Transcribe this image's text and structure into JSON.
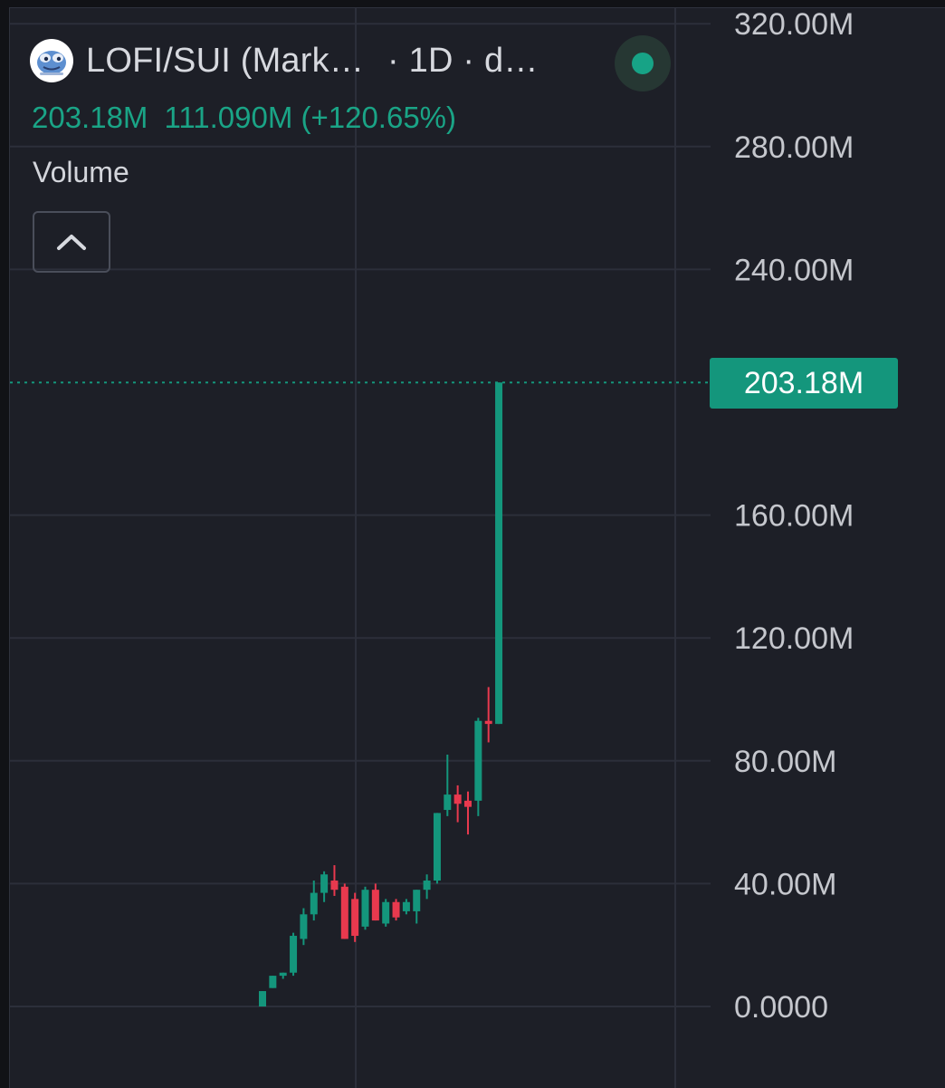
{
  "header": {
    "symbol": "LOFI/SUI (Mark…",
    "interval": "· 1D · d…",
    "logo_icon": "pepe-frog-logo",
    "status_icon": "market-open-dot",
    "status_color": "#17a386"
  },
  "values": {
    "last": "203.18M",
    "change": "111.090M (+120.65%)"
  },
  "indicator": {
    "name": "Volume",
    "collapse_icon": "chevron-up-icon"
  },
  "price_tag": "203.18M",
  "colors": {
    "background": "#1d1f27",
    "up": "#14967c",
    "down": "#e8394e",
    "grid": "#2c2f3a",
    "axis_text": "#c5c7cd"
  },
  "chart_data": {
    "type": "candlestick",
    "y_axis_ticks": [
      "0.0000",
      "40.00M",
      "80.00M",
      "120.00M",
      "160.00M",
      "203.18M",
      "240.00M",
      "280.00M",
      "320.00M"
    ],
    "y_axis_ticks_values": [
      0,
      40,
      80,
      120,
      160,
      240,
      280,
      320
    ],
    "ylim": [
      0,
      320
    ],
    "unit": "M",
    "last_value": 203.18,
    "grid": true,
    "candles": [
      {
        "o": 0,
        "h": 5,
        "l": 0,
        "c": 5
      },
      {
        "o": 6,
        "h": 10,
        "l": 6,
        "c": 10
      },
      {
        "o": 10,
        "h": 11,
        "l": 9,
        "c": 11
      },
      {
        "o": 11,
        "h": 24,
        "l": 10,
        "c": 23
      },
      {
        "o": 22,
        "h": 32,
        "l": 20,
        "c": 30
      },
      {
        "o": 30,
        "h": 41,
        "l": 28,
        "c": 37
      },
      {
        "o": 37,
        "h": 44,
        "l": 34,
        "c": 43
      },
      {
        "o": 41,
        "h": 46,
        "l": 36,
        "c": 38
      },
      {
        "o": 39,
        "h": 40,
        "l": 22,
        "c": 22
      },
      {
        "o": 35,
        "h": 37,
        "l": 21,
        "c": 23
      },
      {
        "o": 26,
        "h": 39,
        "l": 25,
        "c": 38
      },
      {
        "o": 38,
        "h": 40,
        "l": 28,
        "c": 28
      },
      {
        "o": 27,
        "h": 35,
        "l": 26,
        "c": 34
      },
      {
        "o": 34,
        "h": 35,
        "l": 28,
        "c": 29
      },
      {
        "o": 31,
        "h": 35,
        "l": 30,
        "c": 34
      },
      {
        "o": 31,
        "h": 38,
        "l": 27,
        "c": 38
      },
      {
        "o": 38,
        "h": 43,
        "l": 35,
        "c": 41
      },
      {
        "o": 41,
        "h": 63,
        "l": 40,
        "c": 63
      },
      {
        "o": 64,
        "h": 82,
        "l": 62,
        "c": 69
      },
      {
        "o": 69,
        "h": 72,
        "l": 60,
        "c": 66
      },
      {
        "o": 67,
        "h": 70,
        "l": 56,
        "c": 65
      },
      {
        "o": 67,
        "h": 94,
        "l": 62,
        "c": 93
      },
      {
        "o": 93,
        "h": 104,
        "l": 86,
        "c": 92
      },
      {
        "o": 92,
        "h": 203.18,
        "l": 92,
        "c": 203.18
      }
    ]
  }
}
